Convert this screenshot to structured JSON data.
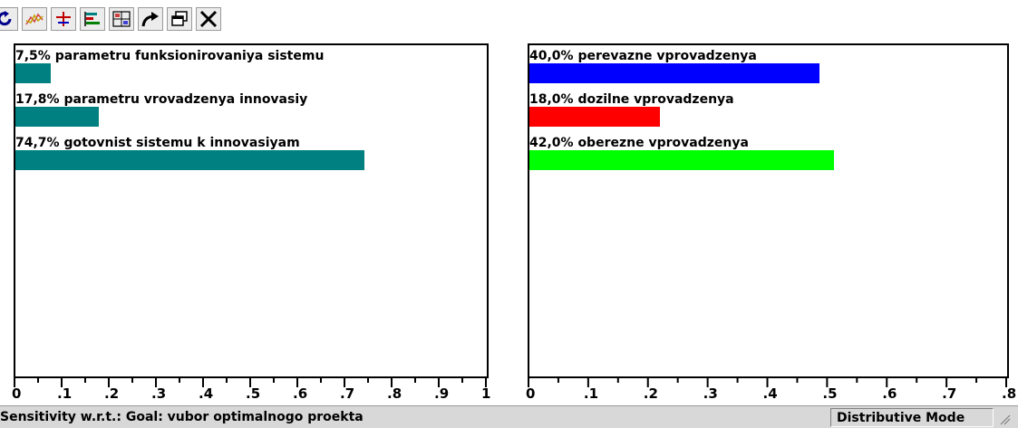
{
  "toolbar": {
    "buttons": [
      {
        "name": "refresh-icon"
      },
      {
        "name": "line-chart-icon"
      },
      {
        "name": "crosshair-icon"
      },
      {
        "name": "bar-chart-icon"
      },
      {
        "name": "grid-chart-icon"
      },
      {
        "name": "redo-arrow-icon"
      },
      {
        "name": "copy-window-icon"
      },
      {
        "name": "close-icon"
      }
    ]
  },
  "left_chart": {
    "type": "bar",
    "orientation": "horizontal",
    "xlim": [
      0,
      1
    ],
    "tick_labels": [
      "0",
      ".1",
      ".2",
      ".3",
      ".4",
      ".5",
      ".6",
      ".7",
      ".8",
      ".9",
      "1"
    ],
    "items": [
      {
        "label": "7,5% parametru funksionirovaniya sistemu",
        "value": 0.075,
        "color": "#008080"
      },
      {
        "label": "17,8% parametru vrovadzenya innovasiy",
        "value": 0.178,
        "color": "#008080"
      },
      {
        "label": "74,7% gotovnist sistemu k innovasiyam",
        "value": 0.747,
        "color": "#008080"
      }
    ]
  },
  "right_chart": {
    "type": "bar",
    "orientation": "horizontal",
    "xlim": [
      0,
      0.8
    ],
    "tick_labels": [
      "0",
      ".1",
      ".2",
      ".3",
      ".4",
      ".5",
      ".6",
      ".7",
      ".8"
    ],
    "items": [
      {
        "label": "40,0% perevazne vprovadzenya",
        "value": 0.4,
        "color": "#0000ff"
      },
      {
        "label": "18,0% dozilne vprovadzenya",
        "value": 0.18,
        "color": "#ff0000"
      },
      {
        "label": "42,0% oberezne vprovadzenya",
        "value": 0.42,
        "color": "#00ff00"
      }
    ]
  },
  "status": {
    "left_text": "Sensitivity w.r.t.: Goal: vubor optimalnogo proekta",
    "mode": "Distributive Mode"
  }
}
